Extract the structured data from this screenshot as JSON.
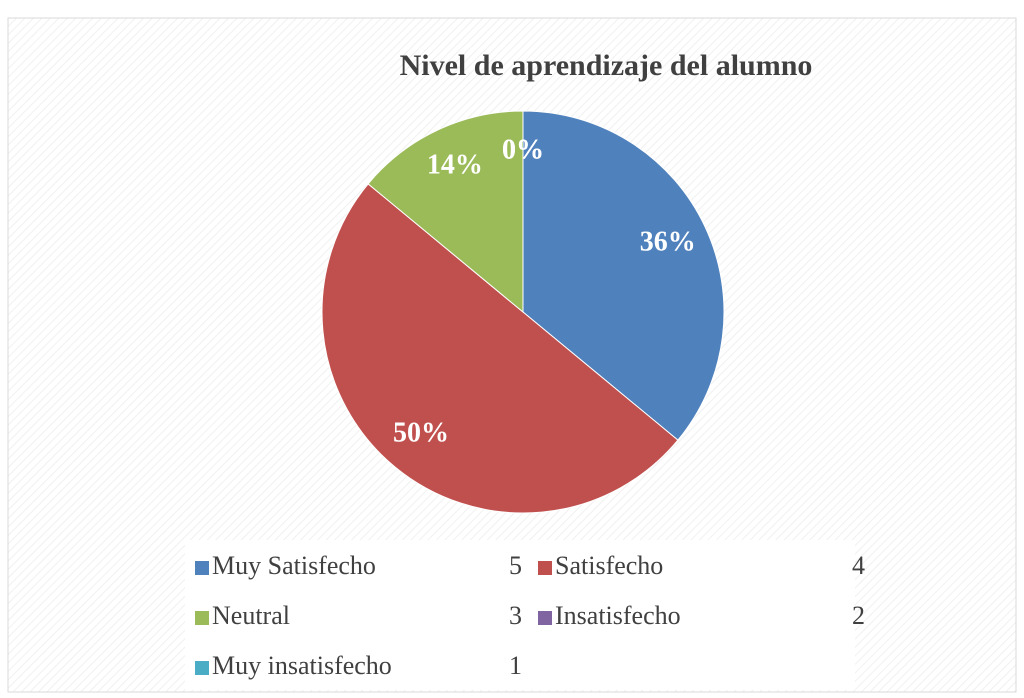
{
  "chart_data": {
    "type": "pie",
    "title": "Nivel de aprendizaje del alumno",
    "categories": [
      "Muy Satisfecho",
      "Satisfecho",
      "Neutral",
      "Insatisfecho",
      "Muy insatisfecho"
    ],
    "scale_values": [
      5,
      4,
      3,
      2,
      1
    ],
    "values": [
      36,
      50,
      14,
      0,
      0
    ],
    "value_labels": [
      "36%",
      "50%",
      "14%",
      "0%",
      "0%"
    ],
    "colors": [
      "#4f81bd",
      "#c0504d",
      "#9bbb59",
      "#8064a2",
      "#4bacc6"
    ],
    "legend": "bottom"
  }
}
